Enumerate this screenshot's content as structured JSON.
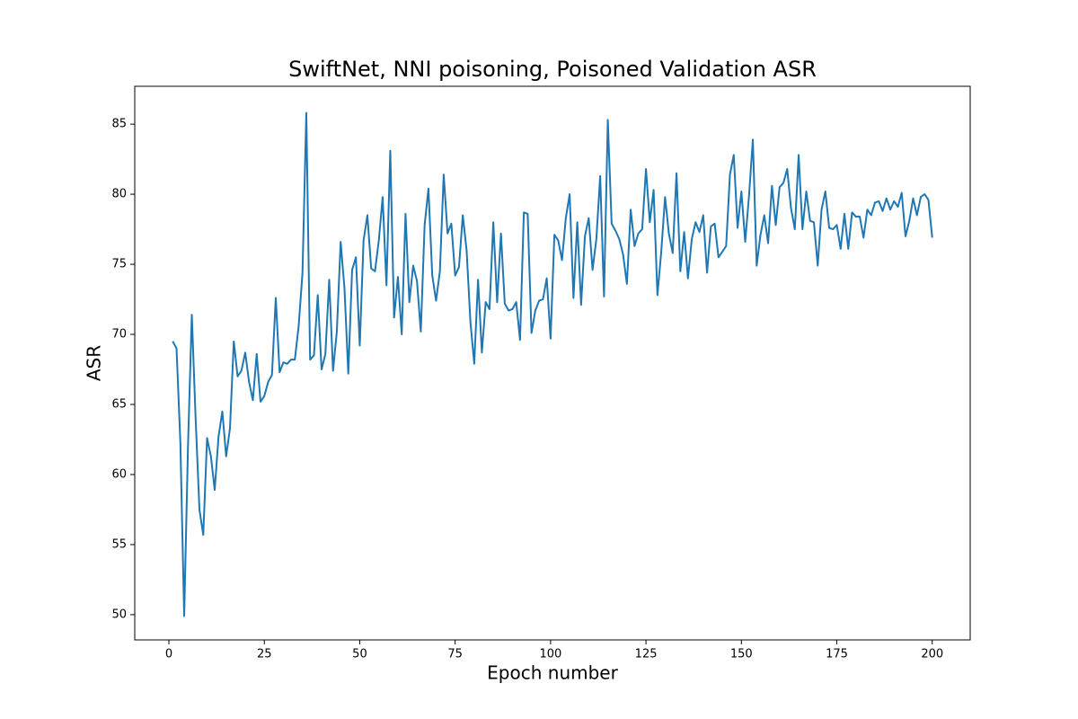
{
  "chart_data": {
    "type": "line",
    "title": "SwiftNet, NNI poisoning, Poisoned Validation ASR",
    "x_label": "Epoch number",
    "y_label": "ASR",
    "x": [
      1,
      2,
      3,
      4,
      5,
      6,
      7,
      8,
      9,
      10,
      11,
      12,
      13,
      14,
      15,
      16,
      17,
      18,
      19,
      20,
      21,
      22,
      23,
      24,
      25,
      26,
      27,
      28,
      29,
      30,
      31,
      32,
      33,
      34,
      35,
      36,
      37,
      38,
      39,
      40,
      41,
      42,
      43,
      44,
      45,
      46,
      47,
      48,
      49,
      50,
      51,
      52,
      53,
      54,
      55,
      56,
      57,
      58,
      59,
      60,
      61,
      62,
      63,
      64,
      65,
      66,
      67,
      68,
      69,
      70,
      71,
      72,
      73,
      74,
      75,
      76,
      77,
      78,
      79,
      80,
      81,
      82,
      83,
      84,
      85,
      86,
      87,
      88,
      89,
      90,
      91,
      92,
      93,
      94,
      95,
      96,
      97,
      98,
      99,
      100,
      101,
      102,
      103,
      104,
      105,
      106,
      107,
      108,
      109,
      110,
      111,
      112,
      113,
      114,
      115,
      116,
      117,
      118,
      119,
      120,
      121,
      122,
      123,
      124,
      125,
      126,
      127,
      128,
      129,
      130,
      131,
      132,
      133,
      134,
      135,
      136,
      137,
      138,
      139,
      140,
      141,
      142,
      143,
      144,
      145,
      146,
      147,
      148,
      149,
      150,
      151,
      152,
      153,
      154,
      155,
      156,
      157,
      158,
      159,
      160,
      161,
      162,
      163,
      164,
      165,
      166,
      167,
      168,
      169,
      170,
      171,
      172,
      173,
      174,
      175,
      176,
      177,
      178,
      179,
      180,
      181,
      182,
      183,
      184,
      185,
      186,
      187,
      188,
      189,
      190,
      191,
      192,
      193,
      194,
      195,
      196,
      197,
      198,
      199,
      200
    ],
    "series": [
      {
        "color": "#1f77b4",
        "values": [
          69.5,
          69.0,
          62.3,
          49.9,
          62.0,
          71.4,
          64.0,
          57.5,
          55.7,
          62.6,
          61.3,
          58.9,
          62.7,
          64.5,
          61.3,
          63.3,
          69.5,
          67.0,
          67.4,
          68.7,
          66.6,
          65.3,
          68.6,
          65.2,
          65.6,
          66.6,
          67.1,
          72.6,
          67.3,
          68.0,
          67.9,
          68.2,
          68.2,
          70.6,
          74.4,
          85.8,
          68.2,
          68.5,
          72.8,
          67.5,
          68.6,
          73.9,
          67.4,
          70.2,
          76.6,
          73.3,
          67.2,
          74.6,
          75.5,
          69.2,
          76.7,
          78.5,
          74.7,
          74.5,
          76.7,
          79.8,
          73.5,
          83.1,
          71.2,
          74.1,
          70.0,
          78.6,
          72.3,
          74.9,
          73.8,
          70.2,
          77.8,
          80.4,
          74.2,
          72.4,
          74.5,
          81.4,
          77.2,
          77.9,
          74.2,
          74.8,
          78.5,
          76.0,
          70.9,
          67.9,
          73.9,
          68.7,
          72.3,
          71.8,
          78.0,
          72.3,
          77.2,
          72.2,
          71.7,
          71.8,
          72.3,
          69.6,
          78.7,
          78.6,
          70.1,
          71.7,
          72.4,
          72.5,
          74.0,
          69.7,
          77.1,
          76.7,
          75.3,
          78.3,
          80.0,
          72.6,
          78.0,
          72.1,
          77.0,
          78.3,
          74.6,
          76.8,
          81.3,
          72.7,
          85.3,
          77.9,
          77.4,
          76.8,
          75.7,
          73.6,
          78.9,
          76.3,
          77.2,
          77.5,
          81.8,
          78.0,
          80.3,
          72.8,
          75.9,
          79.8,
          77.2,
          75.8,
          81.5,
          74.5,
          77.3,
          74.0,
          76.8,
          78.0,
          77.3,
          78.5,
          74.4,
          77.7,
          77.9,
          75.5,
          75.9,
          76.3,
          81.4,
          82.8,
          77.6,
          80.2,
          76.6,
          79.9,
          83.9,
          74.9,
          77.1,
          78.5,
          76.5,
          80.6,
          77.8,
          80.5,
          80.8,
          81.8,
          79.0,
          77.5,
          82.8,
          77.5,
          80.2,
          78.1,
          78.0,
          74.9,
          78.9,
          80.2,
          77.6,
          77.5,
          77.8,
          76.1,
          78.6,
          76.1,
          78.7,
          78.4,
          78.4,
          76.9,
          78.9,
          78.5,
          79.4,
          79.5,
          78.8,
          79.7,
          78.9,
          79.5,
          79.1,
          80.1,
          77.0,
          78.1,
          79.7,
          78.5,
          79.8,
          80.0,
          79.6,
          76.9
        ]
      }
    ],
    "xlim": [
      -8.95,
      209.95
    ],
    "ylim": [
      48.2,
      87.7
    ],
    "xticks": [
      0,
      25,
      50,
      75,
      100,
      125,
      150,
      175,
      200
    ],
    "yticks": [
      50,
      55,
      60,
      65,
      70,
      75,
      80,
      85
    ],
    "grid": false
  }
}
